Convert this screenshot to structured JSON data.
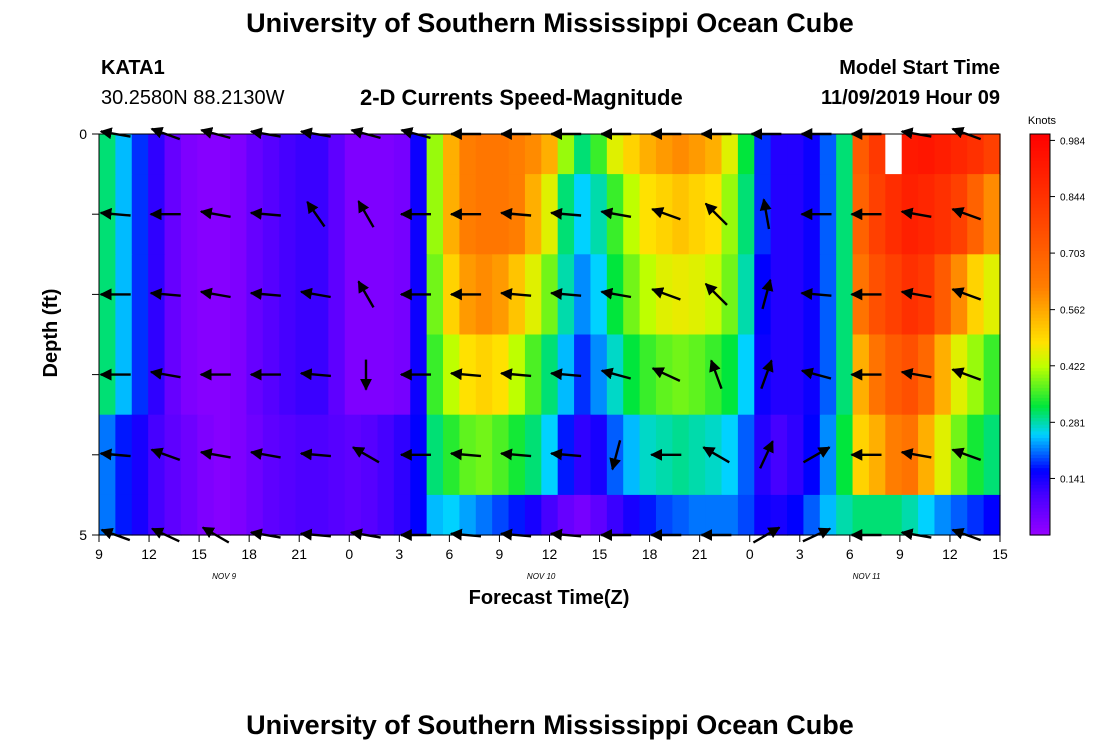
{
  "page": {
    "title_top": "University of Southern Mississippi Ocean Cube",
    "title_bottom": "University of Southern Mississippi Ocean Cube",
    "station": "KATA1",
    "coords": "30.2580N 88.2130W",
    "subtitle": "2-D Currents Speed-Magnitude",
    "model_label": "Model Start Time",
    "model_time": "11/09/2019 Hour 09"
  },
  "chart_data": {
    "type": "heatmap",
    "title": "2-D Currents Speed-Magnitude",
    "xlabel": "Forecast Time(Z)",
    "ylabel": "Depth (ft)",
    "x_hours": [
      0,
      1,
      2,
      3,
      4,
      5,
      6,
      7,
      8,
      9,
      10,
      11,
      12,
      13,
      14,
      15,
      16,
      17,
      18,
      19,
      20,
      21,
      22,
      23,
      24,
      25,
      26,
      27,
      28,
      29,
      30,
      31,
      32,
      33,
      34,
      35,
      36,
      37,
      38,
      39,
      40,
      41,
      42,
      43,
      44,
      45,
      46,
      47,
      48,
      49,
      50,
      51,
      52,
      53,
      54
    ],
    "xlim": [
      0,
      54
    ],
    "x_ticks": [
      {
        "h": 0,
        "label": "9"
      },
      {
        "h": 3,
        "label": "12"
      },
      {
        "h": 6,
        "label": "15"
      },
      {
        "h": 9,
        "label": "18"
      },
      {
        "h": 12,
        "label": "21"
      },
      {
        "h": 15,
        "label": "0"
      },
      {
        "h": 18,
        "label": "3"
      },
      {
        "h": 21,
        "label": "6"
      },
      {
        "h": 24,
        "label": "9"
      },
      {
        "h": 27,
        "label": "12"
      },
      {
        "h": 30,
        "label": "15"
      },
      {
        "h": 33,
        "label": "18"
      },
      {
        "h": 36,
        "label": "21"
      },
      {
        "h": 39,
        "label": "0"
      },
      {
        "h": 42,
        "label": "3"
      },
      {
        "h": 45,
        "label": "6"
      },
      {
        "h": 48,
        "label": "9"
      },
      {
        "h": 51,
        "label": "12"
      },
      {
        "h": 54,
        "label": "15"
      }
    ],
    "date_labels": [
      {
        "h": 7.5,
        "label": "NOV 9"
      },
      {
        "h": 26.5,
        "label": "NOV 10"
      },
      {
        "h": 46,
        "label": "NOV 11"
      }
    ],
    "depth_rows": [
      0,
      1,
      2,
      3,
      4,
      5
    ],
    "ylim": [
      0,
      5
    ],
    "y_tick_labels": [
      {
        "d": 0,
        "label": "0"
      },
      {
        "d": 1,
        "label": ""
      },
      {
        "d": 2,
        "label": ""
      },
      {
        "d": 3,
        "label": ""
      },
      {
        "d": 4,
        "label": ""
      },
      {
        "d": 5,
        "label": "5"
      }
    ],
    "speed_units": "Knots",
    "speed_knots": [
      [
        0.3,
        0.24,
        0.18,
        0.12,
        0.06,
        0.03,
        0.02,
        0.02,
        0.03,
        0.06,
        0.08,
        0.1,
        0.11,
        0.11,
        0.07,
        0.03,
        0.03,
        0.03,
        0.04,
        0.15,
        0.4,
        0.55,
        0.62,
        0.64,
        0.64,
        0.62,
        0.6,
        0.55,
        0.4,
        0.3,
        0.35,
        0.45,
        0.5,
        0.55,
        0.58,
        0.6,
        0.58,
        0.55,
        0.45,
        0.32,
        0.18,
        0.13,
        0.13,
        0.15,
        0.2,
        0.3,
        0.72,
        0.82,
        0.88,
        0.92,
        0.93,
        0.91,
        0.88,
        0.85,
        0.8
      ],
      [
        0.3,
        0.24,
        0.18,
        0.12,
        0.06,
        0.03,
        0.02,
        0.02,
        0.03,
        0.06,
        0.08,
        0.1,
        0.11,
        0.11,
        0.07,
        0.03,
        0.03,
        0.03,
        0.04,
        0.15,
        0.4,
        0.55,
        0.62,
        0.64,
        0.64,
        0.62,
        0.55,
        0.45,
        0.3,
        0.25,
        0.28,
        0.35,
        0.42,
        0.48,
        0.5,
        0.52,
        0.5,
        0.48,
        0.4,
        0.3,
        0.18,
        0.13,
        0.13,
        0.15,
        0.2,
        0.3,
        0.7,
        0.8,
        0.86,
        0.9,
        0.88,
        0.85,
        0.8,
        0.7,
        0.6
      ],
      [
        0.3,
        0.24,
        0.18,
        0.12,
        0.06,
        0.03,
        0.02,
        0.02,
        0.03,
        0.06,
        0.08,
        0.1,
        0.11,
        0.11,
        0.07,
        0.03,
        0.03,
        0.03,
        0.04,
        0.15,
        0.38,
        0.5,
        0.58,
        0.6,
        0.58,
        0.52,
        0.45,
        0.38,
        0.28,
        0.22,
        0.25,
        0.32,
        0.38,
        0.42,
        0.45,
        0.46,
        0.45,
        0.43,
        0.38,
        0.28,
        0.16,
        0.13,
        0.13,
        0.15,
        0.2,
        0.3,
        0.65,
        0.75,
        0.8,
        0.85,
        0.82,
        0.72,
        0.6,
        0.5,
        0.45
      ],
      [
        0.3,
        0.24,
        0.18,
        0.12,
        0.06,
        0.03,
        0.02,
        0.02,
        0.03,
        0.06,
        0.08,
        0.1,
        0.11,
        0.11,
        0.07,
        0.03,
        0.03,
        0.03,
        0.04,
        0.15,
        0.35,
        0.42,
        0.48,
        0.5,
        0.48,
        0.42,
        0.36,
        0.3,
        0.24,
        0.18,
        0.22,
        0.27,
        0.32,
        0.35,
        0.37,
        0.38,
        0.37,
        0.35,
        0.32,
        0.25,
        0.15,
        0.13,
        0.13,
        0.15,
        0.2,
        0.3,
        0.55,
        0.65,
        0.72,
        0.75,
        0.68,
        0.55,
        0.45,
        0.4,
        0.35
      ],
      [
        0.21,
        0.17,
        0.14,
        0.1,
        0.07,
        0.05,
        0.03,
        0.02,
        0.03,
        0.05,
        0.07,
        0.08,
        0.09,
        0.09,
        0.08,
        0.07,
        0.08,
        0.1,
        0.12,
        0.16,
        0.3,
        0.34,
        0.37,
        0.38,
        0.36,
        0.33,
        0.3,
        0.25,
        0.17,
        0.12,
        0.14,
        0.2,
        0.24,
        0.27,
        0.28,
        0.29,
        0.28,
        0.27,
        0.25,
        0.2,
        0.13,
        0.1,
        0.12,
        0.16,
        0.22,
        0.32,
        0.5,
        0.55,
        0.62,
        0.65,
        0.55,
        0.45,
        0.38,
        0.33,
        0.3
      ],
      [
        0.21,
        0.17,
        0.14,
        0.1,
        0.07,
        0.05,
        0.03,
        0.02,
        0.03,
        0.05,
        0.07,
        0.08,
        0.09,
        0.09,
        0.08,
        0.07,
        0.08,
        0.1,
        0.12,
        0.16,
        0.24,
        0.25,
        0.23,
        0.21,
        0.19,
        0.17,
        0.14,
        0.1,
        0.06,
        0.04,
        0.07,
        0.11,
        0.14,
        0.17,
        0.19,
        0.2,
        0.21,
        0.21,
        0.21,
        0.19,
        0.15,
        0.14,
        0.16,
        0.2,
        0.24,
        0.28,
        0.3,
        0.3,
        0.3,
        0.28,
        0.25,
        0.22,
        0.2,
        0.18,
        0.16
      ]
    ],
    "missing_cells": [
      [
        0,
        48
      ]
    ],
    "vector_hours": [
      1,
      4,
      7,
      10,
      13,
      16,
      19,
      22,
      25,
      28,
      31,
      34,
      37,
      40,
      43,
      46,
      49,
      52
    ],
    "vector_directions_deg": [
      [
        -80,
        -70,
        -75,
        -80,
        -80,
        -75,
        -75,
        -90,
        -90,
        -90,
        -90,
        -90,
        -90,
        -90,
        -90,
        -90,
        -80,
        -70
      ],
      [
        -85,
        -90,
        -80,
        -85,
        -35,
        -30,
        -90,
        -90,
        -85,
        -85,
        -80,
        -70,
        -45,
        -10,
        -90,
        -90,
        -80,
        -70
      ],
      [
        -90,
        -85,
        -80,
        -85,
        -80,
        -30,
        -90,
        -90,
        -85,
        -85,
        -80,
        -70,
        -45,
        15,
        -85,
        -90,
        -80,
        -70
      ],
      [
        -90,
        -80,
        -90,
        -90,
        -85,
        180,
        -90,
        -85,
        -85,
        -85,
        -75,
        -65,
        -20,
        20,
        -75,
        -90,
        -80,
        -70
      ],
      [
        -85,
        -70,
        -80,
        -80,
        -85,
        -60,
        -90,
        -85,
        -85,
        -85,
        -165,
        -90,
        -60,
        25,
        60,
        -90,
        -80,
        -70
      ],
      [
        -70,
        -65,
        -60,
        -80,
        -85,
        -80,
        -90,
        -85,
        -85,
        -85,
        -90,
        -90,
        -90,
        60,
        65,
        -90,
        -80,
        -70
      ]
    ],
    "colorbar": {
      "label": "Knots",
      "vmin": 0.0,
      "vmax": 1.0,
      "tick_values": [
        0.141,
        0.281,
        0.422,
        0.562,
        0.703,
        0.844,
        0.984
      ],
      "tick_labels": [
        "0.141",
        "0.281",
        "0.422",
        "0.562",
        "0.703",
        "0.844",
        "0.984"
      ]
    }
  }
}
